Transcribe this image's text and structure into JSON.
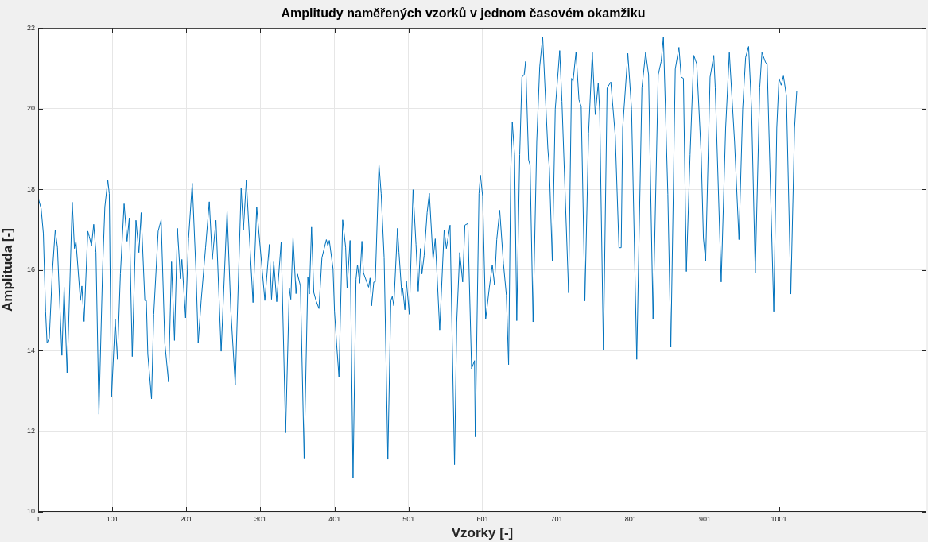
{
  "chart_data": {
    "type": "line",
    "title": "Amplitudy naměřených vzorků v jednom časovém okamžiku",
    "xlabel": "Vzorky [-]",
    "ylabel": "Amplituda [-]",
    "xlim": [
      1,
      1200
    ],
    "xticks": [
      1,
      101,
      201,
      301,
      401,
      501,
      601,
      701,
      801,
      901,
      1001
    ],
    "ylim": [
      10,
      22
    ],
    "yticks": [
      10,
      12,
      14,
      16,
      18,
      20,
      22
    ],
    "grid": true,
    "legend": false,
    "marker": "none",
    "line_style": "solid",
    "series": [
      {
        "color": "#0072bd",
        "x": [
          1,
          5,
          8,
          11,
          13,
          16,
          20,
          24,
          27,
          33,
          36,
          40,
          42,
          47,
          50,
          52,
          58,
          60,
          63,
          68,
          70,
          73,
          76,
          79,
          83,
          88,
          91,
          95,
          97,
          100,
          105,
          108,
          112,
          117,
          121,
          124,
          128,
          133,
          137,
          140,
          145,
          147,
          149,
          154,
          157,
          163,
          167,
          172,
          177,
          181,
          185,
          189,
          193,
          195,
          200,
          204,
          209,
          214,
          217,
          221,
          227,
          232,
          236,
          241,
          248,
          256,
          261,
          267,
          275,
          278,
          282,
          291,
          296,
          300,
          307,
          313,
          316,
          319,
          323,
          329,
          335,
          340,
          342,
          345,
          349,
          351,
          355,
          360,
          365,
          367,
          370,
          373,
          376,
          380,
          384,
          390,
          392,
          394,
          399,
          401,
          404,
          407,
          412,
          416,
          418,
          422,
          426,
          430,
          432,
          435,
          438,
          440,
          447,
          449,
          451,
          454,
          456,
          461,
          464,
          468,
          473,
          477,
          479,
          481,
          486,
          488,
          492,
          493,
          496,
          498,
          502,
          507,
          511,
          514,
          517,
          519,
          522,
          526,
          529,
          534,
          537,
          539,
          543,
          549,
          552,
          557,
          563,
          566,
          570,
          574,
          577,
          581,
          586,
          590,
          591,
          596,
          598,
          601,
          605,
          610,
          614,
          617,
          620,
          624,
          629,
          633,
          636,
          639,
          641,
          644,
          647,
          651,
          654,
          657,
          659,
          663,
          665,
          669,
          674,
          678,
          682,
          686,
          689,
          691,
          695,
          699,
          705,
          708,
          717,
          721,
          723,
          727,
          731,
          734,
          739,
          744,
          749,
          753,
          757,
          759,
          764,
          769,
          774,
          780,
          785,
          788,
          790,
          797,
          802,
          809,
          816,
          821,
          825,
          831,
          838,
          842,
          845,
          851,
          855,
          861,
          866,
          869,
          872,
          876,
          881,
          886,
          890,
          896,
          899,
          902,
          908,
          913,
          915,
          923,
          929,
          934,
          941,
          947,
          952,
          956,
          960,
          964,
          969,
          975,
          978,
          983,
          985,
          994,
          998,
          1001,
          1004,
          1007,
          1011,
          1017,
          1022,
          1025
        ],
        "values": [
          17.79,
          17.52,
          16.9,
          14.97,
          14.18,
          14.31,
          15.9,
          16.99,
          16.56,
          13.88,
          15.57,
          13.45,
          14.58,
          17.68,
          16.53,
          16.71,
          15.24,
          15.6,
          14.72,
          16.96,
          16.83,
          16.6,
          17.13,
          16.43,
          12.42,
          16.03,
          17.56,
          18.23,
          17.89,
          12.85,
          14.77,
          13.78,
          15.9,
          17.64,
          16.71,
          17.29,
          13.85,
          17.23,
          16.43,
          17.42,
          15.24,
          15.24,
          13.91,
          12.8,
          14.9,
          16.96,
          17.24,
          14.18,
          13.22,
          16.2,
          14.25,
          17.03,
          15.78,
          16.26,
          14.81,
          16.77,
          18.15,
          15.97,
          14.19,
          15.24,
          16.56,
          17.69,
          16.26,
          17.23,
          13.98,
          17.46,
          15.01,
          13.15,
          18.02,
          16.99,
          18.22,
          15.19,
          17.56,
          16.7,
          15.24,
          16.63,
          15.27,
          16.2,
          15.21,
          16.7,
          11.96,
          15.54,
          15.27,
          16.81,
          15.41,
          15.9,
          15.6,
          11.33,
          15.83,
          15.4,
          17.06,
          15.44,
          15.24,
          15.04,
          16.3,
          16.75,
          16.6,
          16.73,
          16.03,
          14.97,
          14.11,
          13.35,
          17.24,
          16.56,
          15.54,
          16.73,
          10.83,
          15.77,
          16.13,
          15.67,
          16.71,
          15.93,
          15.57,
          15.8,
          15.11,
          15.7,
          15.7,
          18.62,
          17.89,
          16.3,
          11.3,
          15.24,
          15.34,
          15.11,
          17.03,
          16.43,
          15.34,
          15.54,
          15.01,
          15.72,
          14.9,
          17.99,
          16.63,
          15.47,
          16.53,
          15.9,
          16.36,
          17.42,
          17.9,
          16.26,
          16.77,
          16.03,
          14.51,
          16.99,
          16.53,
          17.11,
          11.17,
          14.71,
          16.43,
          15.7,
          17.11,
          17.15,
          13.55,
          13.75,
          11.86,
          17.89,
          18.35,
          17.82,
          14.77,
          15.56,
          16.13,
          15.63,
          16.75,
          17.48,
          16.16,
          15.37,
          13.65,
          18.53,
          19.66,
          18.86,
          14.74,
          18.86,
          20.78,
          20.84,
          21.17,
          18.73,
          18.6,
          14.71,
          19.19,
          21.04,
          21.78,
          20.18,
          19.0,
          18.53,
          16.22,
          19.99,
          21.44,
          20.18,
          15.43,
          20.75,
          20.68,
          21.41,
          20.22,
          20.05,
          15.23,
          19.39,
          21.39,
          19.85,
          20.63,
          19.92,
          14.01,
          20.51,
          20.66,
          19.33,
          16.55,
          16.55,
          19.52,
          21.37,
          19.98,
          13.78,
          20.51,
          21.39,
          20.84,
          14.77,
          20.84,
          21.17,
          21.78,
          17.87,
          14.08,
          20.98,
          21.52,
          20.78,
          20.75,
          15.96,
          18.86,
          21.32,
          21.11,
          18.86,
          16.79,
          16.22,
          20.78,
          21.32,
          20.51,
          15.7,
          19.52,
          21.39,
          19.19,
          16.75,
          19.99,
          21.27,
          21.54,
          19.99,
          15.93,
          20.51,
          21.39,
          21.14,
          21.11,
          14.97,
          19.52,
          20.75,
          20.58,
          20.81,
          20.32,
          15.4,
          19.52,
          20.44
        ]
      }
    ]
  }
}
